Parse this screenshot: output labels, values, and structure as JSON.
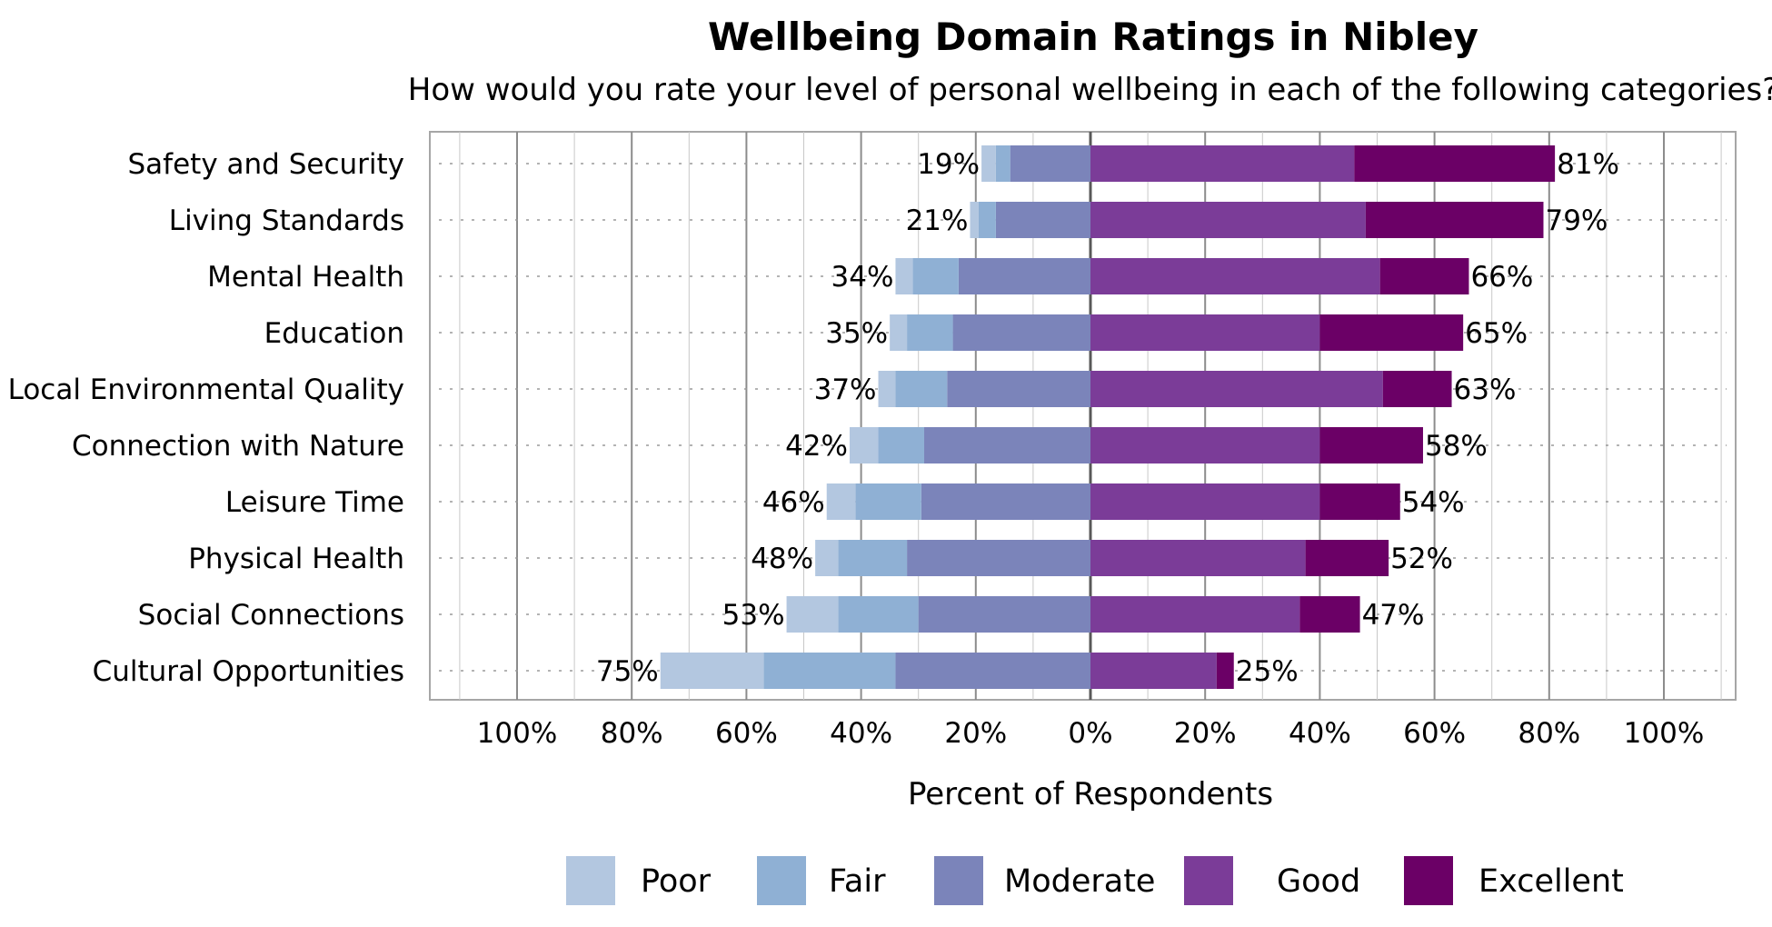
{
  "chart_data": {
    "type": "bar",
    "orientation": "horizontal",
    "stacked": "diverging",
    "title": "Wellbeing Domain Ratings in Nibley",
    "subtitle": "How would you rate your level of personal wellbeing in each of the following categories?",
    "xlabel": "Percent of Respondents",
    "ylabel": "",
    "xlim": [
      -100,
      100
    ],
    "xticks": [
      -100,
      -80,
      -60,
      -40,
      -20,
      0,
      20,
      40,
      60,
      80,
      100
    ],
    "xtick_labels": [
      "100%",
      "80%",
      "60%",
      "40%",
      "20%",
      "0%",
      "20%",
      "40%",
      "60%",
      "80%",
      "100%"
    ],
    "grid": true,
    "legend_position": "bottom",
    "categories": [
      "Safety and Security",
      "Living Standards",
      "Mental Health",
      "Education",
      "Local Environmental Quality",
      "Connection with Nature",
      "Leisure Time",
      "Physical Health",
      "Social Connections",
      "Cultural Opportunities"
    ],
    "series": [
      {
        "name": "Poor",
        "side": "negative",
        "color": "#b3c7e0",
        "values": [
          2.5,
          1.5,
          3,
          3,
          3,
          5,
          5,
          4,
          9,
          18
        ]
      },
      {
        "name": "Fair",
        "side": "negative",
        "color": "#8fb0d4",
        "values": [
          2.5,
          3,
          8,
          8,
          9,
          8,
          11.5,
          12,
          14,
          23
        ]
      },
      {
        "name": "Moderate",
        "side": "negative",
        "color": "#7b84ba",
        "values": [
          14,
          16.5,
          23,
          24,
          25,
          29,
          29.5,
          32,
          30,
          34
        ]
      },
      {
        "name": "Good",
        "side": "positive",
        "color": "#7b3c98",
        "values": [
          46,
          48,
          50.5,
          40,
          51,
          40,
          40,
          37.5,
          36.5,
          22
        ]
      },
      {
        "name": "Excellent",
        "side": "positive",
        "color": "#6b0066",
        "values": [
          35,
          31,
          15.5,
          25,
          12,
          18,
          14,
          14.5,
          10.5,
          3
        ]
      }
    ],
    "negative_totals": [
      "19%",
      "21%",
      "34%",
      "35%",
      "37%",
      "42%",
      "46%",
      "48%",
      "53%",
      "75%"
    ],
    "positive_totals": [
      "81%",
      "79%",
      "66%",
      "65%",
      "63%",
      "58%",
      "54%",
      "52%",
      "47%",
      "25%"
    ]
  }
}
